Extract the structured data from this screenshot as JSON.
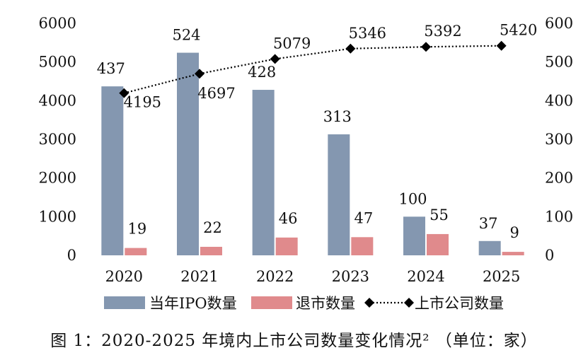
{
  "chart_data": {
    "type": "bar+line",
    "categories": [
      "2020",
      "2021",
      "2022",
      "2023",
      "2024",
      "2025"
    ],
    "series": [
      {
        "name": "当年IPO数量",
        "type": "bar",
        "axis": "right",
        "color": "#8497b0",
        "values": [
          437,
          524,
          428,
          313,
          100,
          37
        ]
      },
      {
        "name": "退市数量",
        "type": "bar",
        "axis": "right",
        "color": "#e08a8c",
        "values": [
          19,
          22,
          46,
          47,
          55,
          9
        ]
      },
      {
        "name": "上市公司数量",
        "type": "line",
        "axis": "left",
        "color": "#000000",
        "line_style": "dotted",
        "marker": "diamond",
        "values": [
          4195,
          4697,
          5079,
          5346,
          5392,
          5420
        ]
      }
    ],
    "y_left": {
      "ylim": [
        0,
        6000
      ],
      "ticks": [
        "0",
        "1000",
        "2000",
        "3000",
        "4000",
        "5000",
        "6000"
      ]
    },
    "y_right": {
      "ylim": [
        0,
        600
      ],
      "ticks": [
        "0",
        "100",
        "200",
        "300",
        "400",
        "500",
        "600"
      ]
    },
    "grid": false,
    "legend_position": "bottom"
  },
  "caption": "图 1：2020-2025 年境内上市公司数量变化情况² （单位：家）"
}
